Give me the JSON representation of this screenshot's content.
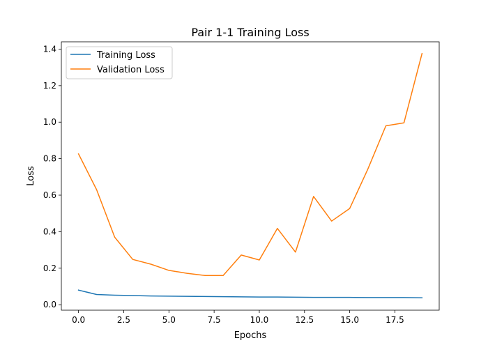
{
  "chart_data": {
    "type": "line",
    "title": "Pair 1-1 Training Loss",
    "xlabel": "Epochs",
    "ylabel": "Loss",
    "xlim": [
      -0.95,
      19.95
    ],
    "ylim": [
      -0.03,
      1.44
    ],
    "x": [
      0,
      1,
      2,
      3,
      4,
      5,
      6,
      7,
      8,
      9,
      10,
      11,
      12,
      13,
      14,
      15,
      16,
      17,
      18,
      19
    ],
    "xticks": [
      0.0,
      2.5,
      5.0,
      7.5,
      10.0,
      12.5,
      15.0,
      17.5
    ],
    "xtick_labels": [
      "0.0",
      "2.5",
      "5.0",
      "7.5",
      "10.0",
      "12.5",
      "15.0",
      "17.5"
    ],
    "yticks": [
      0.0,
      0.2,
      0.4,
      0.6,
      0.8,
      1.0,
      1.2,
      1.4
    ],
    "ytick_labels": [
      "0.0",
      "0.2",
      "0.4",
      "0.6",
      "0.8",
      "1.0",
      "1.2",
      "1.4"
    ],
    "grid": false,
    "legend_position": "top-left",
    "series": [
      {
        "name": "Training Loss",
        "color": "#1f77b4",
        "values": [
          0.08,
          0.056,
          0.052,
          0.05,
          0.048,
          0.047,
          0.046,
          0.045,
          0.044,
          0.043,
          0.042,
          0.042,
          0.041,
          0.04,
          0.04,
          0.04,
          0.039,
          0.039,
          0.039,
          0.038
        ]
      },
      {
        "name": "Validation Loss",
        "color": "#ff7f0e",
        "values": [
          0.826,
          0.63,
          0.37,
          0.248,
          0.222,
          0.188,
          0.172,
          0.16,
          0.16,
          0.272,
          0.245,
          0.418,
          0.288,
          0.593,
          0.458,
          0.527,
          0.742,
          0.98,
          0.996,
          1.376
        ]
      }
    ]
  }
}
